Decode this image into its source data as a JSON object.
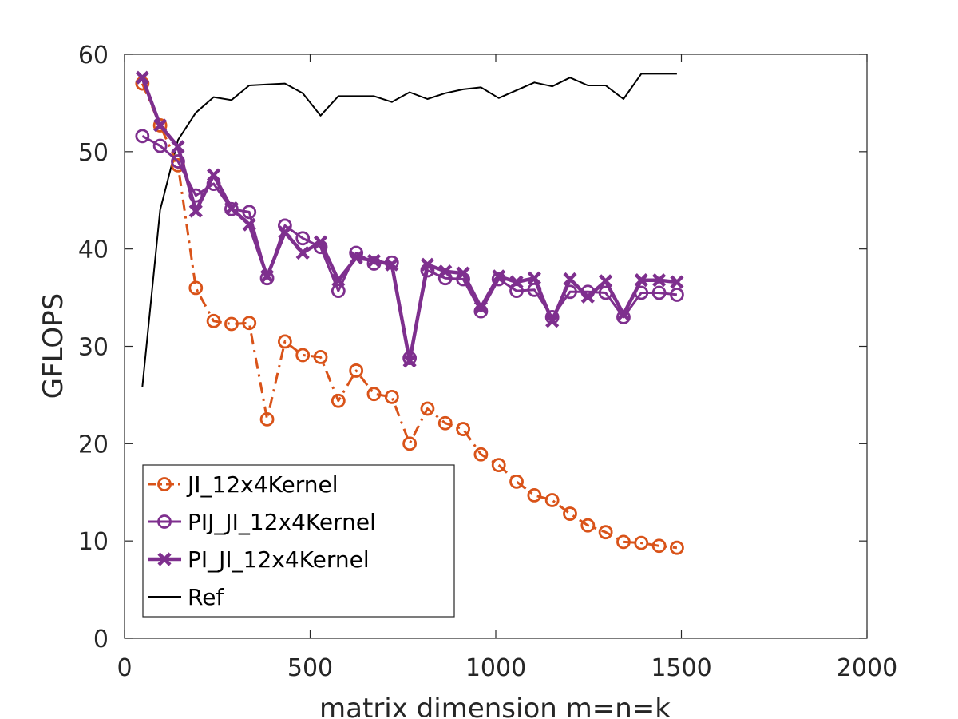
{
  "chart_data": {
    "type": "line",
    "title": "",
    "xlabel": "matrix dimension m=n=k",
    "ylabel": "GFLOPS",
    "xlim": [
      0,
      2000
    ],
    "ylim": [
      0,
      60
    ],
    "xticks": [
      0,
      500,
      1000,
      1500,
      2000
    ],
    "yticks": [
      0,
      10,
      20,
      30,
      40,
      50,
      60
    ],
    "grid": false,
    "legend_position": "bottom-left",
    "x": [
      48,
      96,
      144,
      192,
      240,
      288,
      336,
      384,
      432,
      480,
      528,
      576,
      624,
      672,
      720,
      768,
      816,
      864,
      912,
      960,
      1008,
      1056,
      1104,
      1152,
      1200,
      1248,
      1296,
      1344,
      1392,
      1440,
      1488
    ],
    "series": [
      {
        "name": "JI_12x4Kernel",
        "color": "#D95319",
        "marker": "circle",
        "line_style": "dash-dot",
        "values": [
          57.0,
          52.7,
          48.6,
          36.0,
          32.6,
          32.3,
          32.4,
          22.5,
          30.5,
          29.1,
          28.9,
          24.4,
          27.5,
          25.1,
          24.8,
          20.0,
          23.6,
          22.1,
          21.5,
          18.9,
          17.8,
          16.1,
          14.7,
          14.2,
          12.8,
          11.6,
          10.9,
          9.9,
          9.8,
          9.5,
          9.3
        ]
      },
      {
        "name": "PIJ_JI_12x4Kernel",
        "color": "#7E2F8E",
        "marker": "circle",
        "line_style": "solid",
        "values": [
          51.6,
          50.6,
          49.0,
          45.5,
          46.7,
          44.1,
          43.8,
          37.0,
          42.4,
          41.1,
          40.2,
          35.7,
          39.6,
          38.5,
          38.6,
          28.8,
          37.8,
          37.0,
          36.9,
          33.6,
          36.9,
          35.7,
          35.8,
          33.0,
          35.6,
          35.6,
          35.5,
          33.0,
          35.5,
          35.5,
          35.3
        ]
      },
      {
        "name": "PI_JI_12x4Kernel",
        "color": "#7E2F8E",
        "marker": "x",
        "line_style": "solid",
        "values": [
          57.6,
          52.7,
          50.5,
          43.9,
          47.6,
          44.2,
          42.5,
          37.2,
          41.7,
          39.6,
          40.7,
          36.8,
          39.1,
          38.8,
          38.4,
          28.5,
          38.4,
          37.7,
          37.5,
          34.0,
          37.2,
          36.6,
          37.0,
          32.6,
          36.9,
          35.1,
          36.7,
          33.3,
          36.8,
          36.8,
          36.6
        ]
      },
      {
        "name": "Ref",
        "color": "#000000",
        "marker": "none",
        "line_style": "solid",
        "values": [
          25.8,
          44.0,
          51.2,
          54.0,
          55.6,
          55.3,
          56.8,
          56.9,
          57.0,
          56.0,
          53.7,
          55.7,
          55.7,
          55.7,
          55.1,
          56.1,
          55.4,
          56.0,
          56.4,
          56.6,
          55.5,
          56.3,
          57.1,
          56.7,
          57.6,
          56.8,
          56.8,
          55.4,
          58.0,
          58.0,
          58.0
        ]
      }
    ]
  }
}
